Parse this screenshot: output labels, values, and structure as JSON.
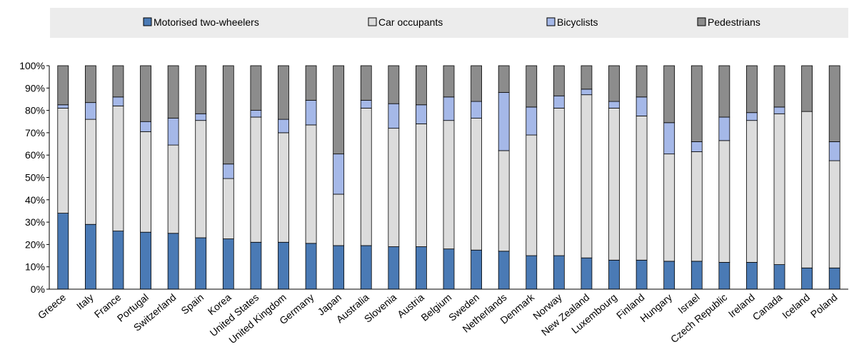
{
  "chart_data": {
    "type": "bar",
    "stacked": true,
    "percent": true,
    "categories": [
      "Greece",
      "Italy",
      "France",
      "Portugal",
      "Switzerland",
      "Spain",
      "Korea",
      "United States",
      "United Kingdom",
      "Germany",
      "Japan",
      "Australia",
      "Slovenia",
      "Austria",
      "Belgium",
      "Sweden",
      "Netherlands",
      "Denmark",
      "Norway",
      "New Zealand",
      "Luxembourg",
      "Finland",
      "Hungary",
      "Israel",
      "Czech Republic",
      "Ireland",
      "Canada",
      "Iceland",
      "Poland"
    ],
    "series": [
      {
        "name": "Motorised two-wheelers",
        "color": "#4a7ab5",
        "values": [
          34,
          29,
          26,
          25.5,
          25,
          23,
          22.5,
          21,
          21,
          20.5,
          19.5,
          19.5,
          19,
          19,
          18,
          17.5,
          17,
          15,
          15,
          14,
          13,
          13,
          12.5,
          12.5,
          12,
          12,
          11,
          9.5,
          9.5
        ]
      },
      {
        "name": "Car occupants",
        "color": "#dcdcdc",
        "values": [
          47,
          47,
          56,
          45,
          39.5,
          52.5,
          27,
          56,
          49,
          53,
          23,
          61.5,
          53,
          55,
          57.5,
          59,
          45,
          54,
          66,
          73,
          68,
          64.5,
          48,
          49,
          54.5,
          63.5,
          67.5,
          70,
          48
        ]
      },
      {
        "name": "Bicyclists",
        "color": "#a5b8e8",
        "values": [
          1.5,
          7.5,
          4,
          4.5,
          12,
          3,
          6.5,
          3,
          6,
          11,
          18,
          3.5,
          11,
          8.5,
          10.5,
          7.5,
          26,
          12.5,
          5.5,
          2.5,
          3,
          8.5,
          14,
          4.5,
          10.5,
          3.5,
          3,
          0,
          8.5
        ]
      },
      {
        "name": "Pedestrians",
        "color": "#8c8c8c",
        "values": [
          17.5,
          16.5,
          14,
          25,
          23.5,
          21.5,
          44,
          20,
          24,
          15.5,
          39.5,
          15.5,
          17,
          17.5,
          14,
          16,
          12,
          18.5,
          13.5,
          10.5,
          16,
          14,
          25.5,
          34,
          23,
          21,
          18.5,
          20.5,
          34
        ]
      }
    ],
    "yaxis": {
      "min": 0,
      "max": 100,
      "step": 10,
      "tick_suffix": "%"
    },
    "legend_position": "top",
    "grid": false
  }
}
